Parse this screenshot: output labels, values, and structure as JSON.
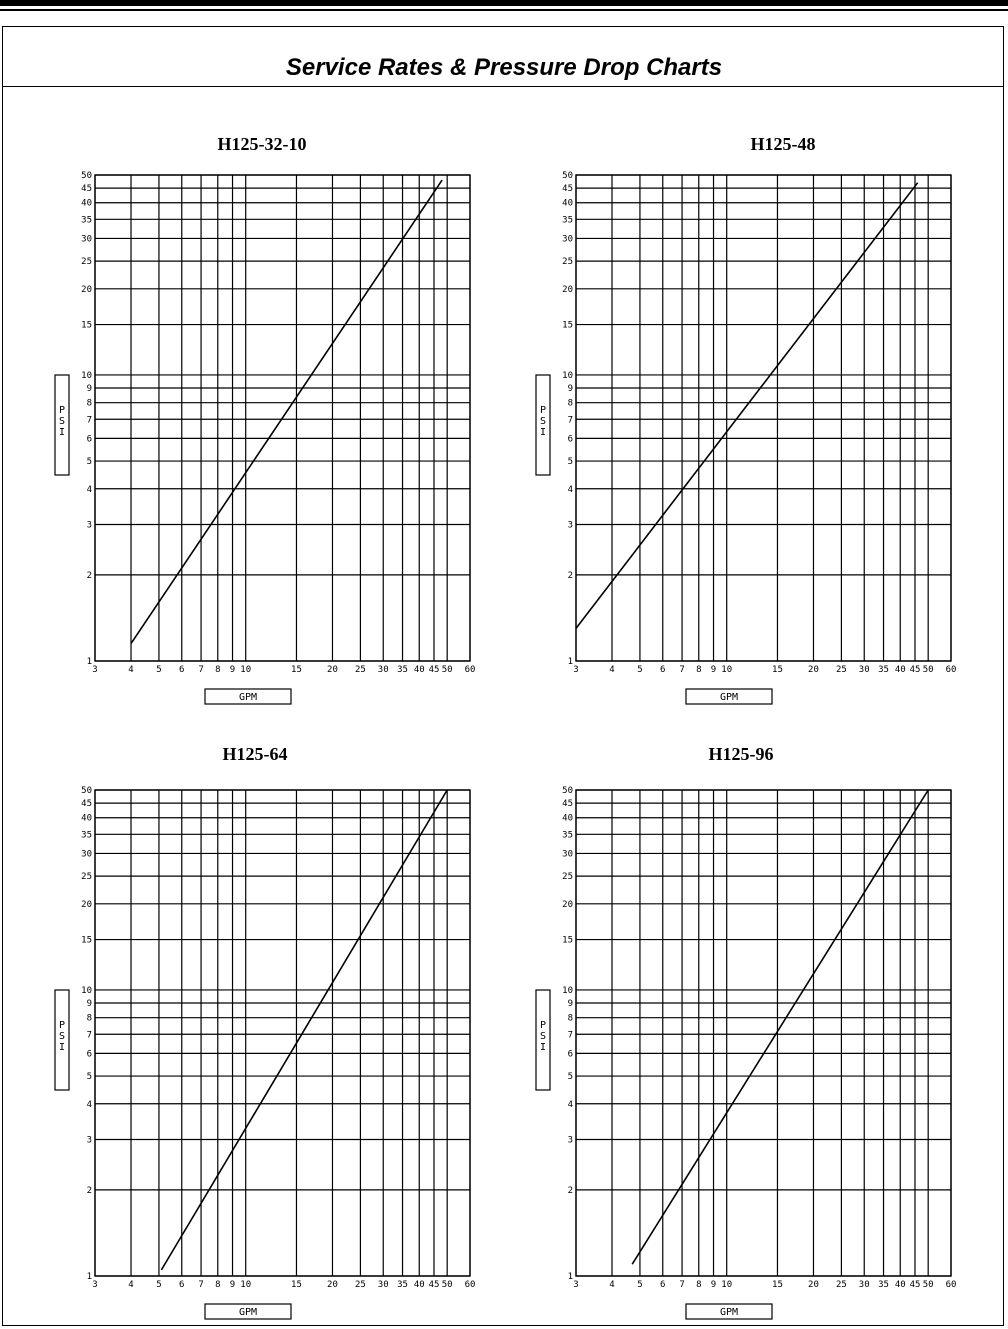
{
  "page": {
    "title": "Service Rates & Pressure Drop Charts"
  },
  "chart_data": [
    {
      "type": "line",
      "title": "H125-32-10",
      "xlabel": "GPM",
      "ylabel": "PSI",
      "xscale": "log",
      "yscale": "log",
      "xlim": [
        3,
        60
      ],
      "ylim": [
        1,
        50
      ],
      "grid": true,
      "x_ticks": [
        3,
        4,
        5,
        6,
        7,
        8,
        9,
        10,
        15,
        20,
        25,
        30,
        35,
        40,
        45,
        50,
        60
      ],
      "y_ticks": [
        1,
        2,
        3,
        4,
        5,
        6,
        7,
        8,
        9,
        10,
        15,
        20,
        25,
        30,
        35,
        40,
        45,
        50
      ],
      "series": [
        {
          "x": [
            4,
            48
          ],
          "y": [
            1.15,
            48
          ]
        }
      ]
    },
    {
      "type": "line",
      "title": "H125-48",
      "xlabel": "GPM",
      "ylabel": "PSI",
      "xscale": "log",
      "yscale": "log",
      "xlim": [
        3,
        60
      ],
      "ylim": [
        1,
        50
      ],
      "grid": true,
      "x_ticks": [
        3,
        4,
        5,
        6,
        7,
        8,
        9,
        10,
        15,
        20,
        25,
        30,
        35,
        40,
        45,
        50,
        60
      ],
      "y_ticks": [
        1,
        2,
        3,
        4,
        5,
        6,
        7,
        8,
        9,
        10,
        15,
        20,
        25,
        30,
        35,
        40,
        45,
        50
      ],
      "series": [
        {
          "x": [
            3,
            46
          ],
          "y": [
            1.3,
            47
          ]
        }
      ]
    },
    {
      "type": "line",
      "title": "H125-64",
      "xlabel": "GPM",
      "ylabel": "PSI",
      "xscale": "log",
      "yscale": "log",
      "xlim": [
        3,
        60
      ],
      "ylim": [
        1,
        50
      ],
      "grid": true,
      "x_ticks": [
        3,
        4,
        5,
        6,
        7,
        8,
        9,
        10,
        15,
        20,
        25,
        30,
        35,
        40,
        45,
        50,
        60
      ],
      "y_ticks": [
        1,
        2,
        3,
        4,
        5,
        6,
        7,
        8,
        9,
        10,
        15,
        20,
        25,
        30,
        35,
        40,
        45,
        50
      ],
      "series": [
        {
          "x": [
            5.1,
            50
          ],
          "y": [
            1.05,
            50
          ]
        }
      ]
    },
    {
      "type": "line",
      "title": "H125-96",
      "xlabel": "GPM",
      "ylabel": "PSI",
      "xscale": "log",
      "yscale": "log",
      "xlim": [
        3,
        60
      ],
      "ylim": [
        1,
        50
      ],
      "grid": true,
      "x_ticks": [
        3,
        4,
        5,
        6,
        7,
        8,
        9,
        10,
        15,
        20,
        25,
        30,
        35,
        40,
        45,
        50,
        60
      ],
      "y_ticks": [
        1,
        2,
        3,
        4,
        5,
        6,
        7,
        8,
        9,
        10,
        15,
        20,
        25,
        30,
        35,
        40,
        45,
        50
      ],
      "series": [
        {
          "x": [
            4.7,
            50
          ],
          "y": [
            1.1,
            50
          ]
        }
      ]
    }
  ]
}
